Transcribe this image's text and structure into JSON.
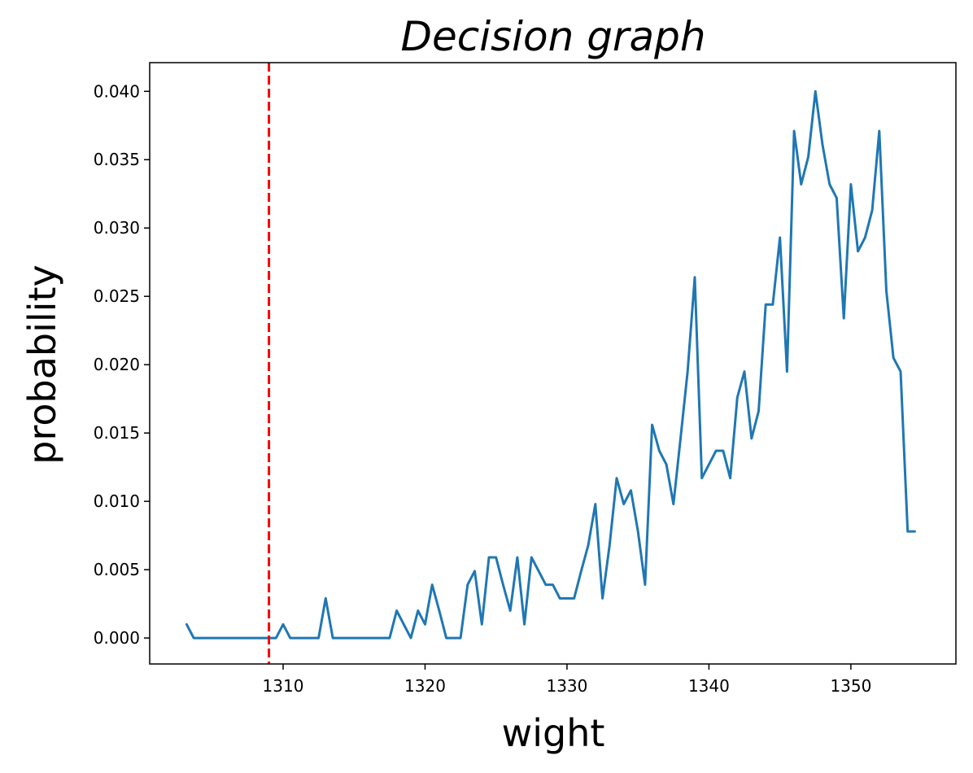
{
  "chart_data": {
    "type": "line",
    "title": "Decision graph",
    "xlabel": "wight",
    "ylabel": "probability",
    "xlim": [
      1300.6,
      1357.4
    ],
    "ylim": [
      -0.0019,
      0.0421
    ],
    "xticks": [
      1310,
      1320,
      1330,
      1340,
      1350
    ],
    "yticks": [
      0.0,
      0.005,
      0.01,
      0.015,
      0.02,
      0.025,
      0.03,
      0.035,
      0.04
    ],
    "ytick_labels": [
      "0.000",
      "0.005",
      "0.010",
      "0.015",
      "0.020",
      "0.025",
      "0.030",
      "0.035",
      "0.040"
    ],
    "grid": false,
    "threshold": {
      "x": 1309.0,
      "style": "dashed",
      "color": "#ff0000"
    },
    "series": [
      {
        "color": "#1f77b4",
        "x": [
          1303.2,
          1303.7,
          1304.2,
          1305.2,
          1306.2,
          1307.2,
          1308.2,
          1309.1,
          1309.5,
          1310.0,
          1310.5,
          1311.0,
          1311.5,
          1312.0,
          1312.5,
          1313.0,
          1313.5,
          1314.0,
          1314.5,
          1315.5,
          1316.5,
          1317.5,
          1318.0,
          1318.5,
          1319.0,
          1319.5,
          1320.0,
          1320.5,
          1321.0,
          1321.5,
          1322.0,
          1322.5,
          1323.0,
          1323.5,
          1324.0,
          1324.5,
          1325.0,
          1325.5,
          1326.0,
          1326.5,
          1327.0,
          1327.5,
          1328.0,
          1328.5,
          1329.0,
          1329.5,
          1330.0,
          1330.5,
          1331.0,
          1331.5,
          1332.0,
          1332.5,
          1333.0,
          1333.5,
          1334.0,
          1334.5,
          1335.0,
          1335.5,
          1336.0,
          1336.5,
          1337.0,
          1337.5,
          1338.0,
          1338.5,
          1339.0,
          1339.5,
          1340.0,
          1340.5,
          1341.0,
          1341.5,
          1342.0,
          1342.5,
          1343.0,
          1343.5,
          1344.0,
          1344.5,
          1345.0,
          1345.5,
          1346.0,
          1346.5,
          1347.0,
          1347.5,
          1348.0,
          1348.5,
          1349.0,
          1349.5,
          1350.0,
          1350.5,
          1351.0,
          1351.5,
          1352.0,
          1352.5,
          1353.0,
          1353.5,
          1354.0,
          1354.5
        ],
        "y": [
          0.001,
          0.0,
          0.0,
          0.0,
          0.0,
          0.0,
          0.0,
          0.0,
          0.0,
          0.001,
          0.0,
          0.0,
          0.0,
          0.0,
          0.0,
          0.0029,
          0.0,
          0.0,
          0.0,
          0.0,
          0.0,
          0.0,
          0.002,
          0.001,
          0.0,
          0.002,
          0.001,
          0.0039,
          0.002,
          0.0,
          0.0,
          0.0,
          0.0039,
          0.0049,
          0.001,
          0.0059,
          0.0059,
          0.0039,
          0.002,
          0.0059,
          0.001,
          0.0059,
          0.0049,
          0.0039,
          0.0039,
          0.0029,
          0.0029,
          0.0029,
          0.0049,
          0.0068,
          0.0098,
          0.0029,
          0.0068,
          0.0117,
          0.0098,
          0.0108,
          0.0078,
          0.0039,
          0.0156,
          0.0137,
          0.0127,
          0.0098,
          0.0146,
          0.0195,
          0.0264,
          0.0117,
          0.0127,
          0.0137,
          0.0137,
          0.0117,
          0.0176,
          0.0195,
          0.0146,
          0.0166,
          0.0244,
          0.0244,
          0.0293,
          0.0195,
          0.0371,
          0.0332,
          0.0352,
          0.04,
          0.0361,
          0.0332,
          0.0322,
          0.0234,
          0.0332,
          0.0283,
          0.0293,
          0.0313,
          0.0371,
          0.0254,
          0.0205,
          0.0195,
          0.0078,
          0.0078
        ]
      }
    ]
  }
}
